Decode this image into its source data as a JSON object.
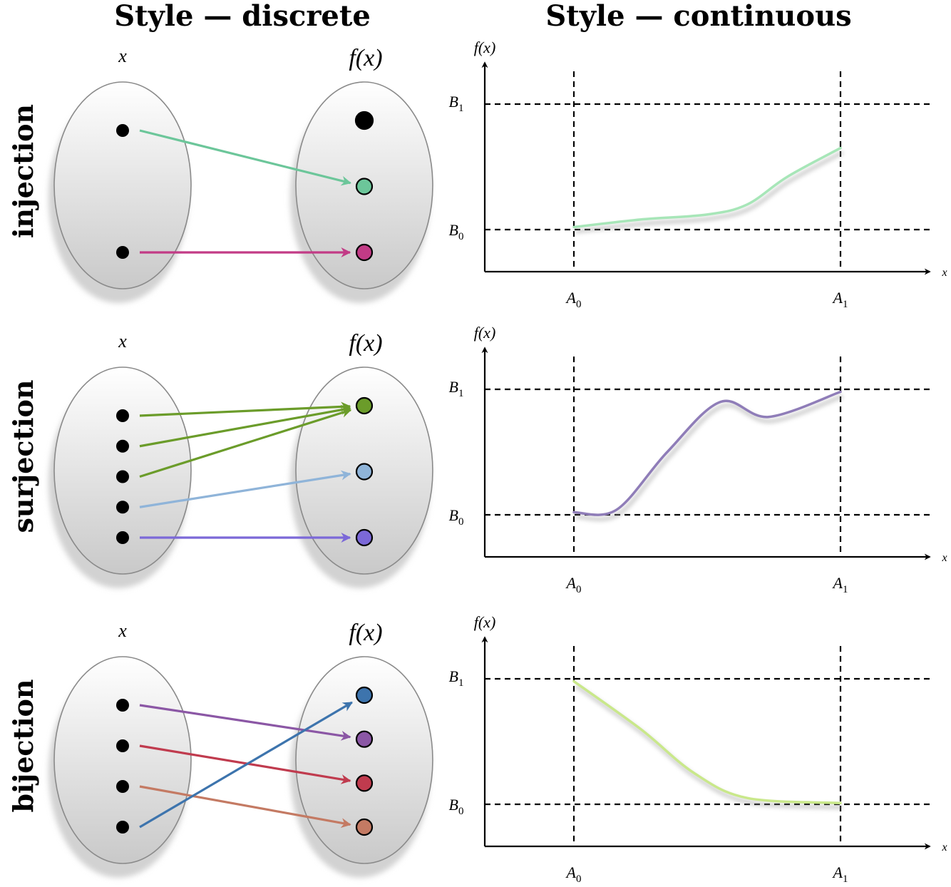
{
  "titles": {
    "discrete": "Style — discrete",
    "continuous": "Style — continuous"
  },
  "labels": {
    "domain": "x",
    "codomain": "f(x)",
    "axis_x": "x",
    "axis_y": "f(x)",
    "A0": "A",
    "A0_sub": "0",
    "A1": "A",
    "A1_sub": "1",
    "B0": "B",
    "B0_sub": "0",
    "B1": "B",
    "B1_sub": "1"
  },
  "rows": [
    {
      "label": "injection",
      "domain_points": 2,
      "codomain_points": [
        {
          "fill": "#000000"
        },
        {
          "fill": "#6cc69a"
        },
        {
          "fill": "#c23b86"
        }
      ],
      "arrows": [
        {
          "from": 0,
          "to": 1,
          "color": "#6cc69a"
        },
        {
          "from": 1,
          "to": 2,
          "color": "#c23b86"
        }
      ],
      "curve_color": "#a7e6b8",
      "curve_values": [
        [
          0,
          0.02
        ],
        [
          0.25,
          0.08
        ],
        [
          0.5,
          0.12
        ],
        [
          0.65,
          0.2
        ],
        [
          0.8,
          0.42
        ],
        [
          1,
          0.65
        ]
      ]
    },
    {
      "label": "surjection",
      "domain_points": 5,
      "codomain_points": [
        {
          "fill": "#6b9c2a"
        },
        {
          "fill": "#8fb4d9"
        },
        {
          "fill": "#7b68d8"
        }
      ],
      "arrows": [
        {
          "from": 0,
          "to": 0,
          "color": "#6b9c2a"
        },
        {
          "from": 1,
          "to": 0,
          "color": "#6b9c2a"
        },
        {
          "from": 2,
          "to": 0,
          "color": "#6b9c2a"
        },
        {
          "from": 3,
          "to": 1,
          "color": "#8fb4d9"
        },
        {
          "from": 4,
          "to": 2,
          "color": "#7b68d8"
        }
      ],
      "curve_color": "#8f7db8",
      "curve_values": [
        [
          0,
          0.02
        ],
        [
          0.16,
          0.04
        ],
        [
          0.35,
          0.5
        ],
        [
          0.55,
          0.9
        ],
        [
          0.73,
          0.78
        ],
        [
          1,
          0.98
        ]
      ]
    },
    {
      "label": "bijection",
      "domain_points": 4,
      "codomain_points": [
        {
          "fill": "#3d74ad"
        },
        {
          "fill": "#8b57a5"
        },
        {
          "fill": "#c03b4e"
        },
        {
          "fill": "#c47a63"
        }
      ],
      "arrows": [
        {
          "from": 0,
          "to": 1,
          "color": "#8b57a5"
        },
        {
          "from": 1,
          "to": 2,
          "color": "#c03b4e"
        },
        {
          "from": 2,
          "to": 3,
          "color": "#c47a63"
        },
        {
          "from": 3,
          "to": 0,
          "color": "#3d74ad"
        }
      ],
      "curve_color": "#c9e88a",
      "curve_values": [
        [
          0,
          0.98
        ],
        [
          0.25,
          0.6
        ],
        [
          0.45,
          0.25
        ],
        [
          0.65,
          0.05
        ],
        [
          1,
          0.01
        ]
      ]
    }
  ]
}
